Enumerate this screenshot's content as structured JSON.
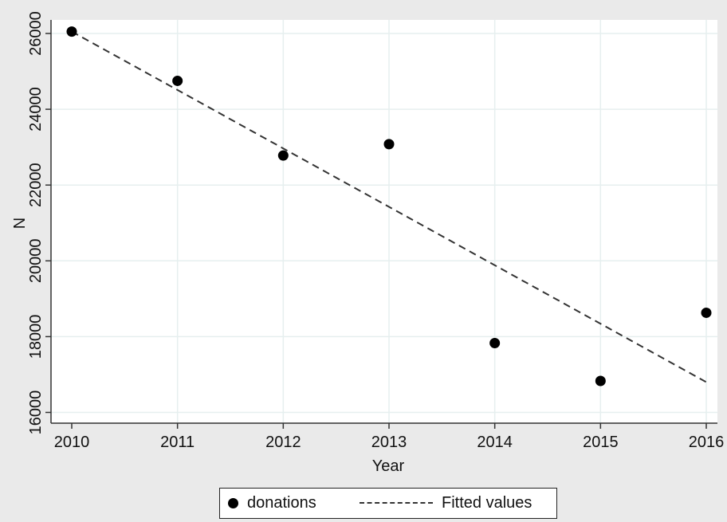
{
  "chart_data": {
    "type": "scatter",
    "title": "",
    "xlabel": "Year",
    "ylabel": "N",
    "xlim": [
      2010,
      2016
    ],
    "ylim": [
      16000,
      26500
    ],
    "x_ticks": [
      2010,
      2011,
      2012,
      2013,
      2014,
      2015,
      2016
    ],
    "y_ticks": [
      16000,
      18000,
      20000,
      22000,
      24000,
      26000
    ],
    "grid": true,
    "legend_position": "bottom",
    "series": [
      {
        "name": "donations",
        "type": "scatter",
        "marker": "filled-circle",
        "color": "#000000",
        "x": [
          2010,
          2011,
          2012,
          2013,
          2014,
          2015,
          2016
        ],
        "y": [
          26050,
          24750,
          22780,
          23080,
          17830,
          16830,
          18630
        ]
      },
      {
        "name": "Fitted values",
        "type": "line",
        "line_style": "dashed",
        "color": "#333333",
        "x": [
          2010,
          2016
        ],
        "y": [
          26050,
          16800
        ]
      }
    ]
  },
  "legend": {
    "items": [
      {
        "label": "donations"
      },
      {
        "label": "Fitted values"
      }
    ]
  },
  "colors": {
    "figure_background": "#eaeaea",
    "plot_background": "#ffffff",
    "grid": "#e6efef",
    "axis": "#333333"
  }
}
